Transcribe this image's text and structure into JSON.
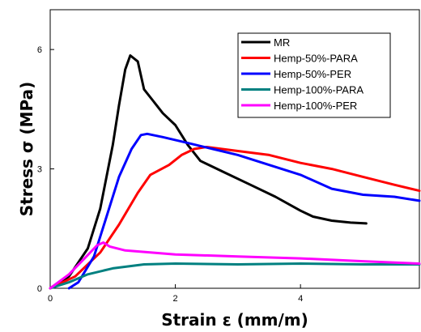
{
  "chart_data": {
    "type": "line",
    "xlabel": "Strain ε (mm/m)",
    "ylabel": "Stress σ (MPa)",
    "xlim": [
      0,
      5.9
    ],
    "ylim": [
      0,
      7.0
    ],
    "x_ticks": [
      0,
      2,
      4
    ],
    "y_ticks": [
      0,
      3,
      6
    ],
    "grid": false,
    "legend_position": "top-right",
    "series": [
      {
        "name": "MR",
        "color": "#000000",
        "points": [
          [
            0,
            0
          ],
          [
            0.3,
            0.3
          ],
          [
            0.6,
            1.0
          ],
          [
            0.8,
            2.0
          ],
          [
            1.0,
            3.6
          ],
          [
            1.1,
            4.6
          ],
          [
            1.2,
            5.5
          ],
          [
            1.28,
            5.85
          ],
          [
            1.4,
            5.7
          ],
          [
            1.5,
            5.0
          ],
          [
            1.65,
            4.7
          ],
          [
            1.8,
            4.4
          ],
          [
            2.0,
            4.1
          ],
          [
            2.2,
            3.6
          ],
          [
            2.4,
            3.2
          ],
          [
            2.8,
            2.9
          ],
          [
            3.2,
            2.6
          ],
          [
            3.6,
            2.3
          ],
          [
            4.0,
            1.95
          ],
          [
            4.2,
            1.8
          ],
          [
            4.5,
            1.7
          ],
          [
            4.8,
            1.65
          ],
          [
            5.05,
            1.63
          ]
        ]
      },
      {
        "name": "Hemp-50%-PARA",
        "color": "#ff0000",
        "points": [
          [
            0,
            0
          ],
          [
            0.4,
            0.3
          ],
          [
            0.8,
            0.9
          ],
          [
            1.1,
            1.6
          ],
          [
            1.4,
            2.4
          ],
          [
            1.6,
            2.85
          ],
          [
            1.9,
            3.1
          ],
          [
            2.1,
            3.35
          ],
          [
            2.3,
            3.5
          ],
          [
            2.5,
            3.55
          ],
          [
            3.0,
            3.45
          ],
          [
            3.5,
            3.35
          ],
          [
            4.0,
            3.15
          ],
          [
            4.5,
            3.0
          ],
          [
            5.0,
            2.8
          ],
          [
            5.5,
            2.6
          ],
          [
            5.9,
            2.45
          ]
        ]
      },
      {
        "name": "Hemp-50%-PER",
        "color": "#0000ff",
        "points": [
          [
            0.3,
            0
          ],
          [
            0.45,
            0.15
          ],
          [
            0.7,
            0.8
          ],
          [
            0.9,
            1.8
          ],
          [
            1.1,
            2.8
          ],
          [
            1.3,
            3.5
          ],
          [
            1.45,
            3.85
          ],
          [
            1.55,
            3.88
          ],
          [
            1.8,
            3.8
          ],
          [
            2.2,
            3.65
          ],
          [
            2.6,
            3.5
          ],
          [
            3.0,
            3.35
          ],
          [
            3.5,
            3.1
          ],
          [
            4.0,
            2.85
          ],
          [
            4.5,
            2.5
          ],
          [
            5.0,
            2.35
          ],
          [
            5.5,
            2.3
          ],
          [
            5.9,
            2.2
          ]
        ]
      },
      {
        "name": "Hemp-100%-PARA",
        "color": "#008080",
        "points": [
          [
            0,
            0
          ],
          [
            0.3,
            0.15
          ],
          [
            0.6,
            0.35
          ],
          [
            1.0,
            0.5
          ],
          [
            1.5,
            0.6
          ],
          [
            2.0,
            0.62
          ],
          [
            3.0,
            0.6
          ],
          [
            4.0,
            0.62
          ],
          [
            5.0,
            0.6
          ],
          [
            5.9,
            0.6
          ]
        ]
      },
      {
        "name": "Hemp-100%-PER",
        "color": "#ff00ff",
        "points": [
          [
            0,
            0
          ],
          [
            0.3,
            0.35
          ],
          [
            0.55,
            0.75
          ],
          [
            0.75,
            1.08
          ],
          [
            0.85,
            1.15
          ],
          [
            0.95,
            1.05
          ],
          [
            1.2,
            0.95
          ],
          [
            1.6,
            0.9
          ],
          [
            2.0,
            0.85
          ],
          [
            3.0,
            0.8
          ],
          [
            4.0,
            0.75
          ],
          [
            5.0,
            0.68
          ],
          [
            5.9,
            0.62
          ]
        ]
      }
    ]
  }
}
